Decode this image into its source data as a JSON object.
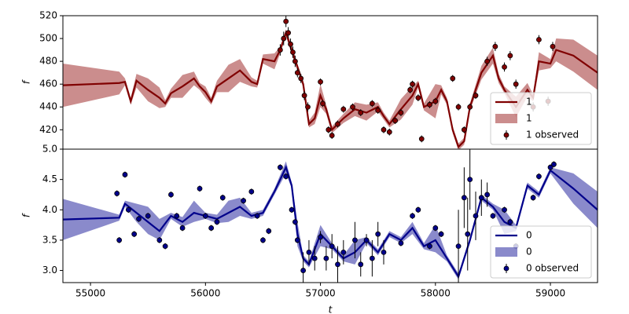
{
  "chart_data": [
    {
      "type": "line",
      "ylabel": "f",
      "legend": "lower right",
      "xlim": [
        54760,
        59410
      ],
      "ylim": [
        403,
        520
      ],
      "yticks": [
        420,
        440,
        460,
        480,
        500,
        520
      ],
      "x": [
        54760,
        55250,
        55300,
        55350,
        55400,
        55500,
        55600,
        55650,
        55700,
        55800,
        55900,
        55950,
        56000,
        56050,
        56100,
        56200,
        56300,
        56400,
        56450,
        56500,
        56600,
        56650,
        56700,
        56750,
        56800,
        56850,
        56900,
        56950,
        57000,
        57050,
        57100,
        57200,
        57300,
        57400,
        57500,
        57550,
        57600,
        57700,
        57800,
        57850,
        57900,
        58000,
        58050,
        58100,
        58150,
        58200,
        58250,
        58300,
        58400,
        58500,
        58550,
        58600,
        58700,
        58800,
        58850,
        58900,
        59000,
        59050,
        59200,
        59410
      ],
      "series": [
        {
          "name": "1",
          "color": "#800000",
          "values": [
            459,
            461,
            462,
            445,
            463,
            455,
            448,
            443,
            452,
            458,
            465,
            458,
            453,
            445,
            458,
            465,
            472,
            462,
            460,
            482,
            480,
            490,
            505,
            490,
            475,
            460,
            425,
            430,
            450,
            438,
            420,
            430,
            438,
            435,
            440,
            432,
            425,
            438,
            450,
            460,
            440,
            445,
            455,
            445,
            420,
            405,
            410,
            440,
            470,
            485,
            465,
            455,
            440,
            455,
            448,
            480,
            478,
            490,
            485,
            470
          ]
        }
      ],
      "band": {
        "name": "1",
        "color": "#a03030",
        "lower": [
          440,
          451,
          459,
          442,
          457,
          445,
          439,
          440,
          448,
          448,
          459,
          455,
          448,
          442,
          453,
          453,
          462,
          458,
          457,
          478,
          473,
          487,
          502,
          486,
          472,
          457,
          422,
          425,
          440,
          434,
          417,
          426,
          432,
          428,
          436,
          429,
          422,
          429,
          442,
          457,
          437,
          430,
          451,
          442,
          417,
          402,
          407,
          437,
          464,
          478,
          461,
          452,
          431,
          449,
          445,
          472,
          474,
          480,
          471,
          455
        ],
        "upper": [
          478,
          471,
          465,
          448,
          469,
          465,
          457,
          446,
          456,
          468,
          471,
          461,
          458,
          448,
          463,
          477,
          482,
          466,
          463,
          486,
          487,
          493,
          508,
          494,
          478,
          463,
          428,
          435,
          460,
          442,
          423,
          434,
          444,
          442,
          444,
          435,
          428,
          447,
          458,
          463,
          443,
          460,
          459,
          448,
          423,
          408,
          413,
          443,
          476,
          492,
          469,
          458,
          449,
          461,
          451,
          488,
          482,
          500,
          499,
          485
        ]
      },
      "observed": {
        "name": "1 observed",
        "color": "#800000",
        "x": [
          56650,
          56680,
          56700,
          56720,
          56740,
          56760,
          56780,
          56800,
          56830,
          56860,
          56890,
          57000,
          57020,
          57070,
          57100,
          57150,
          57200,
          57280,
          57350,
          57450,
          57500,
          57550,
          57600,
          57650,
          57700,
          57780,
          57800,
          57850,
          57880,
          57950,
          58000,
          58150,
          58200,
          58250,
          58300,
          58350,
          58450,
          58520,
          58600,
          58650,
          58700,
          58850,
          58900,
          58980,
          59020
        ],
        "values": [
          490,
          500,
          515,
          505,
          495,
          488,
          480,
          470,
          465,
          450,
          440,
          462,
          443,
          420,
          415,
          425,
          438,
          440,
          435,
          443,
          437,
          420,
          418,
          428,
          435,
          455,
          460,
          448,
          412,
          442,
          445,
          465,
          440,
          420,
          440,
          450,
          480,
          493,
          475,
          485,
          460,
          440,
          499,
          445,
          493
        ],
        "errors": [
          5,
          6,
          5,
          5,
          5,
          5,
          5,
          4,
          4,
          4,
          4,
          3,
          3,
          3,
          3,
          3,
          3,
          3,
          3,
          3,
          3,
          3,
          3,
          3,
          3,
          3,
          3,
          3,
          3,
          3,
          3,
          3,
          3,
          3,
          3,
          3,
          4,
          4,
          4,
          4,
          4,
          4,
          4,
          4,
          4
        ]
      }
    },
    {
      "type": "line",
      "ylabel": "f",
      "xlabel": "t",
      "legend": "lower right",
      "xlim": [
        54760,
        59410
      ],
      "ylim": [
        2.8,
        5.0
      ],
      "yticks": [
        {
          "value": 3,
          "label": "3.0"
        },
        3.5,
        {
          "value": 4,
          "label": "4.0"
        },
        4.5,
        {
          "value": 5,
          "label": "5.0"
        }
      ],
      "xticks": [
        55000,
        56000,
        57000,
        58000,
        59000
      ],
      "x": [
        54760,
        55250,
        55300,
        55400,
        55500,
        55600,
        55700,
        55800,
        55900,
        56000,
        56100,
        56200,
        56300,
        56400,
        56500,
        56600,
        56700,
        56750,
        56800,
        56850,
        56900,
        57000,
        57100,
        57200,
        57300,
        57400,
        57500,
        57600,
        57700,
        57800,
        57900,
        58000,
        58100,
        58200,
        58300,
        58400,
        58500,
        58600,
        58700,
        58800,
        58900,
        59000,
        59200,
        59410
      ],
      "series": [
        {
          "name": "0",
          "color": "#00008b",
          "values": [
            3.84,
            3.87,
            4.1,
            3.95,
            3.8,
            3.65,
            3.9,
            3.8,
            3.95,
            3.9,
            3.85,
            3.95,
            4.05,
            3.9,
            3.95,
            4.3,
            4.7,
            4.4,
            3.6,
            3.2,
            3.1,
            3.6,
            3.4,
            3.2,
            3.3,
            3.5,
            3.3,
            3.6,
            3.5,
            3.7,
            3.4,
            3.5,
            3.2,
            2.9,
            3.5,
            4.2,
            4.05,
            3.8,
            3.7,
            4.4,
            4.25,
            4.65,
            4.35,
            4.0
          ]
        }
      ],
      "band": {
        "name": "0",
        "color": "#2a2aa0",
        "lower": [
          3.5,
          3.82,
          4.05,
          3.8,
          3.6,
          3.5,
          3.85,
          3.72,
          3.8,
          3.85,
          3.78,
          3.8,
          3.9,
          3.85,
          3.9,
          4.25,
          4.6,
          4.35,
          3.4,
          3.15,
          3.05,
          3.4,
          3.35,
          3.15,
          3.1,
          3.45,
          3.25,
          3.55,
          3.45,
          3.6,
          3.35,
          3.3,
          3.15,
          2.85,
          3.45,
          4.15,
          4.0,
          3.6,
          3.65,
          4.35,
          4.2,
          4.6,
          4.1,
          3.7
        ],
        "upper": [
          4.18,
          3.92,
          4.15,
          4.1,
          4.05,
          3.85,
          3.95,
          3.88,
          4.15,
          3.95,
          3.92,
          4.15,
          4.2,
          3.95,
          4.0,
          4.35,
          4.8,
          4.45,
          3.8,
          3.25,
          3.15,
          3.75,
          3.45,
          3.25,
          3.5,
          3.55,
          3.35,
          3.65,
          3.55,
          3.8,
          3.45,
          3.75,
          3.25,
          2.95,
          3.55,
          4.25,
          4.1,
          4.0,
          3.75,
          4.45,
          4.3,
          4.7,
          4.6,
          4.3
        ]
      },
      "observed": {
        "name": "0 observed",
        "color": "#00008b",
        "x": [
          55230,
          55250,
          55300,
          55330,
          55380,
          55420,
          55500,
          55600,
          55650,
          55700,
          55750,
          55800,
          55950,
          56000,
          56050,
          56100,
          56150,
          56330,
          56400,
          56450,
          56500,
          56550,
          56650,
          56700,
          56750,
          56780,
          56800,
          56850,
          56900,
          56950,
          57000,
          57050,
          57100,
          57150,
          57200,
          57300,
          57350,
          57400,
          57450,
          57500,
          57550,
          57700,
          57800,
          57850,
          57950,
          58000,
          58050,
          58200,
          58250,
          58280,
          58300,
          58350,
          58400,
          58450,
          58500,
          58600,
          58650,
          58700,
          58850,
          58900,
          59000,
          59030
        ],
        "values": [
          4.27,
          3.5,
          4.58,
          4.0,
          3.6,
          3.85,
          3.9,
          3.5,
          3.4,
          4.25,
          3.9,
          3.7,
          4.35,
          3.9,
          3.7,
          3.8,
          4.2,
          4.15,
          4.3,
          3.9,
          3.5,
          3.65,
          4.7,
          4.55,
          4.0,
          3.8,
          3.5,
          3.0,
          3.3,
          3.2,
          3.55,
          3.2,
          3.4,
          3.1,
          3.3,
          3.5,
          3.1,
          3.5,
          3.2,
          3.6,
          3.3,
          3.45,
          3.9,
          4.0,
          3.4,
          3.7,
          3.6,
          3.4,
          4.2,
          3.6,
          4.5,
          3.9,
          4.2,
          4.25,
          3.9,
          4.0,
          3.8,
          3.4,
          4.2,
          4.55,
          4.7,
          4.75
        ],
        "errors": [
          0.05,
          0.05,
          0.05,
          0.05,
          0.05,
          0.05,
          0.05,
          0.05,
          0.05,
          0.05,
          0.05,
          0.05,
          0.05,
          0.05,
          0.05,
          0.05,
          0.05,
          0.05,
          0.05,
          0.05,
          0.05,
          0.05,
          0.05,
          0.05,
          0.05,
          0.05,
          0.05,
          0.3,
          0.2,
          0.2,
          0.1,
          0.2,
          0.2,
          0.3,
          0.2,
          0.3,
          0.2,
          0.1,
          0.3,
          0.2,
          0.2,
          0.05,
          0.05,
          0.05,
          0.05,
          0.05,
          0.05,
          0.6,
          0.5,
          0.6,
          0.5,
          0.4,
          0.3,
          0.2,
          0.05,
          0.05,
          0.05,
          0.05,
          0.05,
          0.05,
          0.05,
          0.05
        ]
      }
    }
  ]
}
